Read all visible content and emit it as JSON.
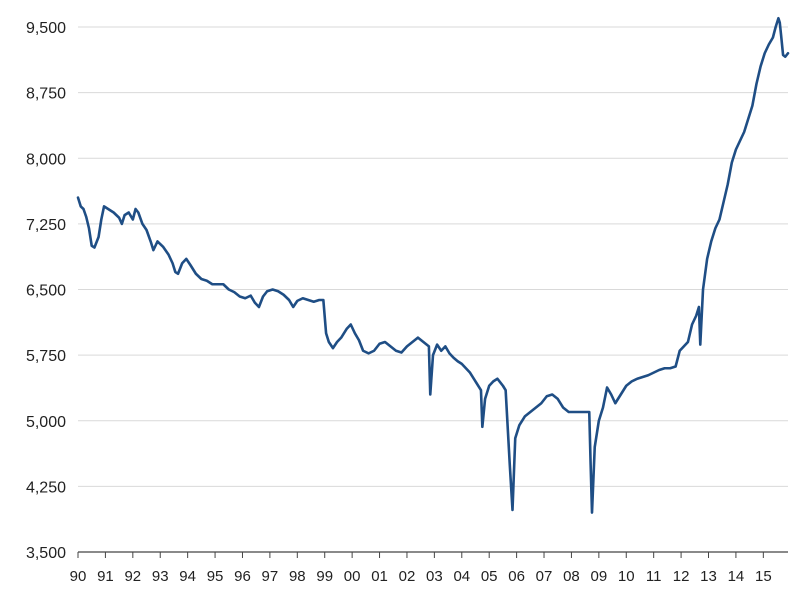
{
  "chart_data": {
    "type": "line",
    "title": "",
    "xlabel": "",
    "ylabel": "",
    "xlim": [
      1990.0,
      2015.9
    ],
    "ylim": [
      3500,
      9500
    ],
    "yticks": [
      "3,500",
      "4,250",
      "5,000",
      "5,750",
      "6,500",
      "7,250",
      "8,000",
      "8,750",
      "9,500"
    ],
    "ytick_values": [
      3500,
      4250,
      5000,
      5750,
      6500,
      7250,
      8000,
      8750,
      9500
    ],
    "xticks": [
      "90",
      "91",
      "92",
      "93",
      "94",
      "95",
      "96",
      "97",
      "98",
      "99",
      "00",
      "01",
      "02",
      "03",
      "04",
      "05",
      "06",
      "07",
      "08",
      "09",
      "10",
      "11",
      "12",
      "13",
      "14",
      "15"
    ],
    "xtick_values": [
      1990,
      1991,
      1992,
      1993,
      1994,
      1995,
      1996,
      1997,
      1998,
      1999,
      2000,
      2001,
      2002,
      2003,
      2004,
      2005,
      2006,
      2007,
      2008,
      2009,
      2010,
      2011,
      2012,
      2013,
      2014,
      2015
    ],
    "grid": "horizontal",
    "line_color": "#1f4e85",
    "series": [
      {
        "points": [
          [
            1990.0,
            7550
          ],
          [
            1990.1,
            7450
          ],
          [
            1990.2,
            7420
          ],
          [
            1990.3,
            7330
          ],
          [
            1990.4,
            7200
          ],
          [
            1990.5,
            7000
          ],
          [
            1990.6,
            6980
          ],
          [
            1990.75,
            7100
          ],
          [
            1990.85,
            7300
          ],
          [
            1990.95,
            7450
          ],
          [
            1991.1,
            7420
          ],
          [
            1991.3,
            7380
          ],
          [
            1991.5,
            7320
          ],
          [
            1991.6,
            7250
          ],
          [
            1991.7,
            7350
          ],
          [
            1991.85,
            7380
          ],
          [
            1992.0,
            7300
          ],
          [
            1992.1,
            7420
          ],
          [
            1992.2,
            7380
          ],
          [
            1992.35,
            7250
          ],
          [
            1992.5,
            7180
          ],
          [
            1992.65,
            7050
          ],
          [
            1992.75,
            6950
          ],
          [
            1992.9,
            7050
          ],
          [
            1993.1,
            6990
          ],
          [
            1993.3,
            6900
          ],
          [
            1993.45,
            6800
          ],
          [
            1993.55,
            6700
          ],
          [
            1993.65,
            6680
          ],
          [
            1993.8,
            6800
          ],
          [
            1993.95,
            6850
          ],
          [
            1994.1,
            6780
          ],
          [
            1994.3,
            6680
          ],
          [
            1994.5,
            6620
          ],
          [
            1994.7,
            6600
          ],
          [
            1994.9,
            6560
          ],
          [
            1995.1,
            6560
          ],
          [
            1995.3,
            6560
          ],
          [
            1995.5,
            6500
          ],
          [
            1995.7,
            6470
          ],
          [
            1995.9,
            6420
          ],
          [
            1996.1,
            6400
          ],
          [
            1996.3,
            6430
          ],
          [
            1996.45,
            6350
          ],
          [
            1996.6,
            6300
          ],
          [
            1996.75,
            6420
          ],
          [
            1996.9,
            6480
          ],
          [
            1997.1,
            6500
          ],
          [
            1997.3,
            6480
          ],
          [
            1997.5,
            6440
          ],
          [
            1997.7,
            6380
          ],
          [
            1997.85,
            6300
          ],
          [
            1998.0,
            6370
          ],
          [
            1998.2,
            6400
          ],
          [
            1998.4,
            6380
          ],
          [
            1998.6,
            6360
          ],
          [
            1998.8,
            6380
          ],
          [
            1998.95,
            6380
          ],
          [
            1999.05,
            6000
          ],
          [
            1999.15,
            5900
          ],
          [
            1999.3,
            5830
          ],
          [
            1999.45,
            5900
          ],
          [
            1999.6,
            5950
          ],
          [
            1999.8,
            6050
          ],
          [
            1999.95,
            6100
          ],
          [
            2000.1,
            6000
          ],
          [
            2000.25,
            5920
          ],
          [
            2000.4,
            5800
          ],
          [
            2000.6,
            5770
          ],
          [
            2000.8,
            5800
          ],
          [
            2001.0,
            5880
          ],
          [
            2001.2,
            5900
          ],
          [
            2001.4,
            5850
          ],
          [
            2001.6,
            5800
          ],
          [
            2001.8,
            5780
          ],
          [
            2002.0,
            5850
          ],
          [
            2002.2,
            5900
          ],
          [
            2002.4,
            5950
          ],
          [
            2002.6,
            5900
          ],
          [
            2002.8,
            5850
          ],
          [
            2002.85,
            5300
          ],
          [
            2002.95,
            5750
          ],
          [
            2003.1,
            5870
          ],
          [
            2003.25,
            5800
          ],
          [
            2003.4,
            5850
          ],
          [
            2003.55,
            5770
          ],
          [
            2003.7,
            5720
          ],
          [
            2003.85,
            5680
          ],
          [
            2004.0,
            5650
          ],
          [
            2004.15,
            5600
          ],
          [
            2004.3,
            5550
          ],
          [
            2004.5,
            5450
          ],
          [
            2004.7,
            5350
          ],
          [
            2004.75,
            4930
          ],
          [
            2004.85,
            5250
          ],
          [
            2005.0,
            5400
          ],
          [
            2005.15,
            5450
          ],
          [
            2005.3,
            5480
          ],
          [
            2005.5,
            5400
          ],
          [
            2005.6,
            5350
          ],
          [
            2005.75,
            4500
          ],
          [
            2005.85,
            3980
          ],
          [
            2005.95,
            4800
          ],
          [
            2006.1,
            4950
          ],
          [
            2006.3,
            5050
          ],
          [
            2006.5,
            5100
          ],
          [
            2006.7,
            5150
          ],
          [
            2006.9,
            5200
          ],
          [
            2007.1,
            5280
          ],
          [
            2007.3,
            5300
          ],
          [
            2007.5,
            5250
          ],
          [
            2007.7,
            5150
          ],
          [
            2007.9,
            5100
          ],
          [
            2008.1,
            5100
          ],
          [
            2008.3,
            5100
          ],
          [
            2008.5,
            5100
          ],
          [
            2008.65,
            5100
          ],
          [
            2008.7,
            4500
          ],
          [
            2008.75,
            3950
          ],
          [
            2008.85,
            4700
          ],
          [
            2009.0,
            5000
          ],
          [
            2009.15,
            5150
          ],
          [
            2009.3,
            5380
          ],
          [
            2009.45,
            5300
          ],
          [
            2009.6,
            5200
          ],
          [
            2009.8,
            5300
          ],
          [
            2010.0,
            5400
          ],
          [
            2010.2,
            5450
          ],
          [
            2010.4,
            5480
          ],
          [
            2010.6,
            5500
          ],
          [
            2010.8,
            5520
          ],
          [
            2011.0,
            5550
          ],
          [
            2011.2,
            5580
          ],
          [
            2011.4,
            5600
          ],
          [
            2011.6,
            5600
          ],
          [
            2011.8,
            5620
          ],
          [
            2011.95,
            5800
          ],
          [
            2012.1,
            5850
          ],
          [
            2012.25,
            5900
          ],
          [
            2012.4,
            6100
          ],
          [
            2012.55,
            6200
          ],
          [
            2012.65,
            6300
          ],
          [
            2012.7,
            5870
          ],
          [
            2012.8,
            6500
          ],
          [
            2012.95,
            6850
          ],
          [
            2013.1,
            7050
          ],
          [
            2013.25,
            7200
          ],
          [
            2013.4,
            7300
          ],
          [
            2013.55,
            7500
          ],
          [
            2013.7,
            7700
          ],
          [
            2013.85,
            7950
          ],
          [
            2014.0,
            8100
          ],
          [
            2014.15,
            8200
          ],
          [
            2014.3,
            8300
          ],
          [
            2014.45,
            8450
          ],
          [
            2014.6,
            8600
          ],
          [
            2014.75,
            8850
          ],
          [
            2014.9,
            9050
          ],
          [
            2015.05,
            9200
          ],
          [
            2015.2,
            9300
          ],
          [
            2015.35,
            9380
          ],
          [
            2015.45,
            9500
          ],
          [
            2015.55,
            9600
          ],
          [
            2015.6,
            9550
          ],
          [
            2015.65,
            9400
          ],
          [
            2015.72,
            9180
          ],
          [
            2015.8,
            9160
          ],
          [
            2015.9,
            9200
          ]
        ]
      }
    ]
  }
}
